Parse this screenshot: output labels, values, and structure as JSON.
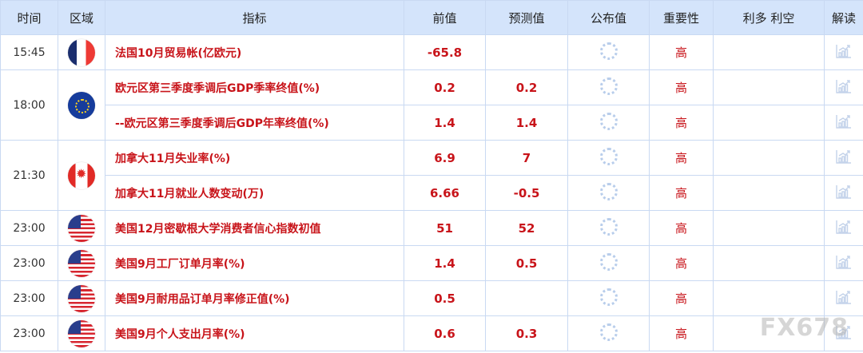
{
  "headers": [
    "时间",
    "区域",
    "指标",
    "前值",
    "预测值",
    "公布值",
    "重要性",
    "利多 利空",
    "解读"
  ],
  "groups": [
    {
      "time": "15:45",
      "flag": "france-flag",
      "rows": [
        {
          "indicator": "法国10月贸易帐(亿欧元)",
          "previous": "-65.8",
          "forecast": "",
          "importance": "高"
        }
      ]
    },
    {
      "time": "18:00",
      "flag": "eu-flag",
      "rows": [
        {
          "indicator": "欧元区第三季度季调后GDP季率终值(%)",
          "previous": "0.2",
          "forecast": "0.2",
          "importance": "高"
        },
        {
          "indicator": "--欧元区第三季度季调后GDP年率终值(%)",
          "previous": "1.4",
          "forecast": "1.4",
          "importance": "高"
        }
      ]
    },
    {
      "time": "21:30",
      "flag": "canada-flag",
      "rows": [
        {
          "indicator": "加拿大11月失业率(%)",
          "previous": "6.9",
          "forecast": "7",
          "importance": "高"
        },
        {
          "indicator": "加拿大11月就业人数变动(万)",
          "previous": "6.66",
          "forecast": "-0.5",
          "importance": "高"
        }
      ]
    },
    {
      "time": "23:00",
      "flag": "us-flag",
      "rows": [
        {
          "indicator": "美国12月密歇根大学消费者信心指数初值",
          "previous": "51",
          "forecast": "52",
          "importance": "高"
        }
      ]
    },
    {
      "time": "23:00",
      "flag": "us-flag",
      "rows": [
        {
          "indicator": "美国9月工厂订单月率(%)",
          "previous": "1.4",
          "forecast": "0.5",
          "importance": "高"
        }
      ]
    },
    {
      "time": "23:00",
      "flag": "us-flag",
      "rows": [
        {
          "indicator": "美国9月耐用品订单月率修正值(%)",
          "previous": "0.5",
          "forecast": "",
          "importance": "高"
        }
      ]
    },
    {
      "time": "23:00",
      "flag": "us-flag",
      "rows": [
        {
          "indicator": "美国9月个人支出月率(%)",
          "previous": "0.6",
          "forecast": "0.3",
          "importance": "高"
        }
      ]
    }
  ],
  "watermark": "FX678",
  "colors": {
    "header_bg": "#d4e4fb",
    "accent_red": "#c8141a",
    "border": "#c9d9f2"
  }
}
